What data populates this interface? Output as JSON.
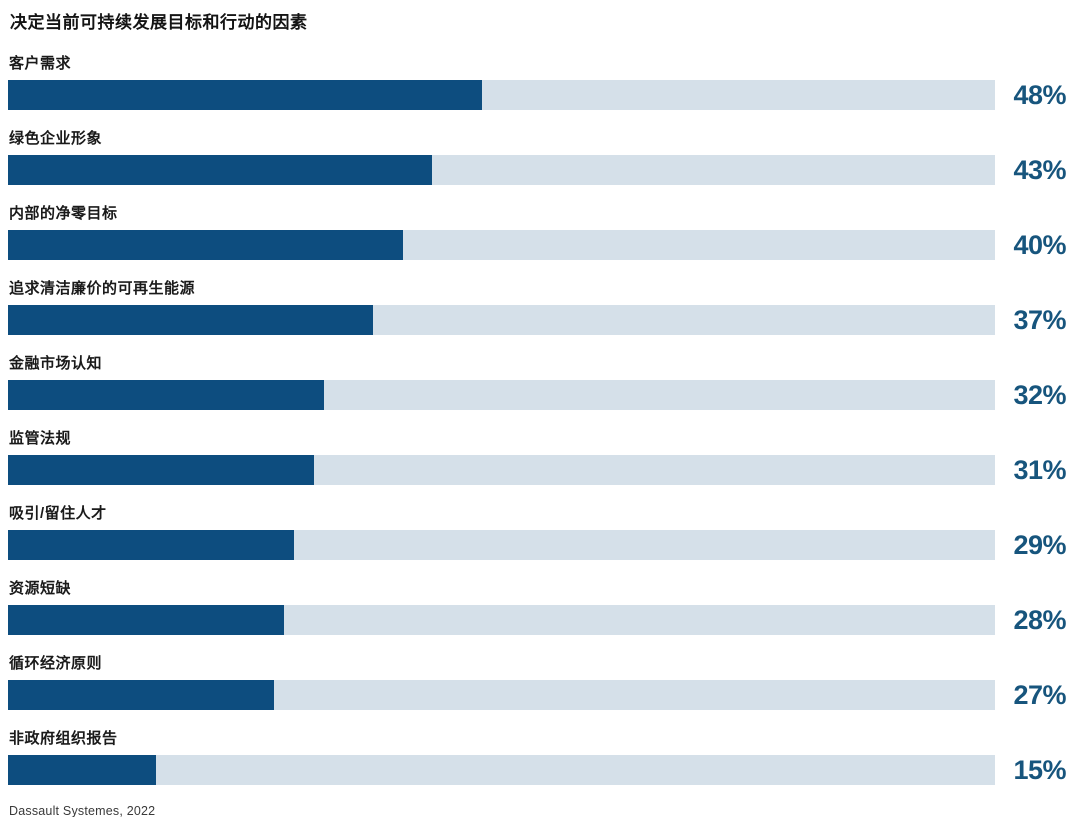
{
  "chart_data": {
    "type": "bar",
    "orientation": "horizontal",
    "title": "决定当前可持续发展目标和行动的因素",
    "unit": "%",
    "categories": [
      "客户需求",
      "绿色企业形象",
      "内部的净零目标",
      "追求清洁廉价的可再生能源",
      "金融市场认知",
      "监管法规",
      "吸引/留住人才",
      "资源短缺",
      "循环经济原则",
      "非政府组织报告"
    ],
    "values": [
      48,
      43,
      40,
      37,
      32,
      31,
      29,
      28,
      27,
      15
    ],
    "value_labels": [
      "48%",
      "43%",
      "40%",
      "37%",
      "32%",
      "31%",
      "29%",
      "28%",
      "27%",
      "15%"
    ],
    "xlim": [
      0,
      100
    ],
    "grid": false,
    "legend": false,
    "colors": {
      "bar_fill": "#0d4d7f",
      "bar_track": "#d5e0e9",
      "value_text": "#17557d",
      "label_text": "#1a1a1a",
      "title_text": "#141414"
    }
  },
  "source": "Dassault Systemes, 2022"
}
